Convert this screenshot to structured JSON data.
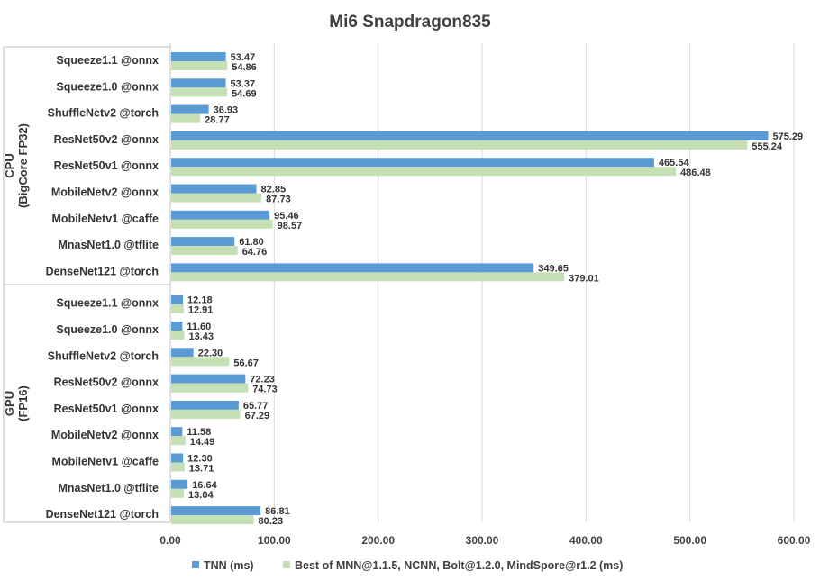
{
  "chart_data": {
    "type": "bar",
    "orientation": "horizontal",
    "title": "Mi6 Snapdragon835",
    "xlim": [
      0,
      600
    ],
    "xticks": [
      "0.00",
      "100.00",
      "200.00",
      "300.00",
      "400.00",
      "500.00",
      "600.00"
    ],
    "grid": true,
    "legend_position": "bottom",
    "colors": {
      "tnn": "#5b9bd5",
      "best": "#c5e0b4"
    },
    "groups": [
      {
        "label": [
          "CPU",
          "(BigCore FP32)"
        ],
        "categories": [
          "Squeeze1.1 @onnx",
          "Squeeze1.0 @onnx",
          "ShuffleNetv2 @torch",
          "ResNet50v2 @onnx",
          "ResNet50v1 @onnx",
          "MobileNetv2 @onnx",
          "MobileNetv1 @caffe",
          "MnasNet1.0 @tflite",
          "DenseNet121 @torch"
        ],
        "series": [
          {
            "name": "TNN (ms)",
            "values": [
              53.47,
              53.37,
              36.93,
              575.29,
              465.54,
              82.85,
              95.46,
              61.8,
              349.65
            ]
          },
          {
            "name": "Best of MNN@1.1.5, NCNN, Bolt@1.2.0, MindSpore@r1.2 (ms)",
            "values": [
              54.86,
              54.69,
              28.77,
              555.24,
              486.48,
              87.73,
              98.57,
              64.76,
              379.01
            ]
          }
        ]
      },
      {
        "label": [
          "GPU",
          "(FP16)"
        ],
        "categories": [
          "Squeeze1.1 @onnx",
          "Squeeze1.0 @onnx",
          "ShuffleNetv2 @torch",
          "ResNet50v2 @onnx",
          "ResNet50v1 @onnx",
          "MobileNetv2 @onnx",
          "MobileNetv1 @caffe",
          "MnasNet1.0 @tflite",
          "DenseNet121 @torch"
        ],
        "series": [
          {
            "name": "TNN (ms)",
            "values": [
              12.18,
              11.6,
              22.3,
              72.23,
              65.77,
              11.58,
              12.3,
              16.64,
              86.81
            ]
          },
          {
            "name": "Best of MNN@1.1.5, NCNN, Bolt@1.2.0, MindSpore@r1.2 (ms)",
            "values": [
              12.91,
              13.43,
              56.67,
              74.73,
              67.29,
              14.49,
              13.71,
              13.04,
              80.23
            ]
          }
        ]
      }
    ],
    "legend": [
      "TNN (ms)",
      "Best of MNN@1.1.5, NCNN, Bolt@1.2.0, MindSpore@r1.2 (ms)"
    ]
  }
}
